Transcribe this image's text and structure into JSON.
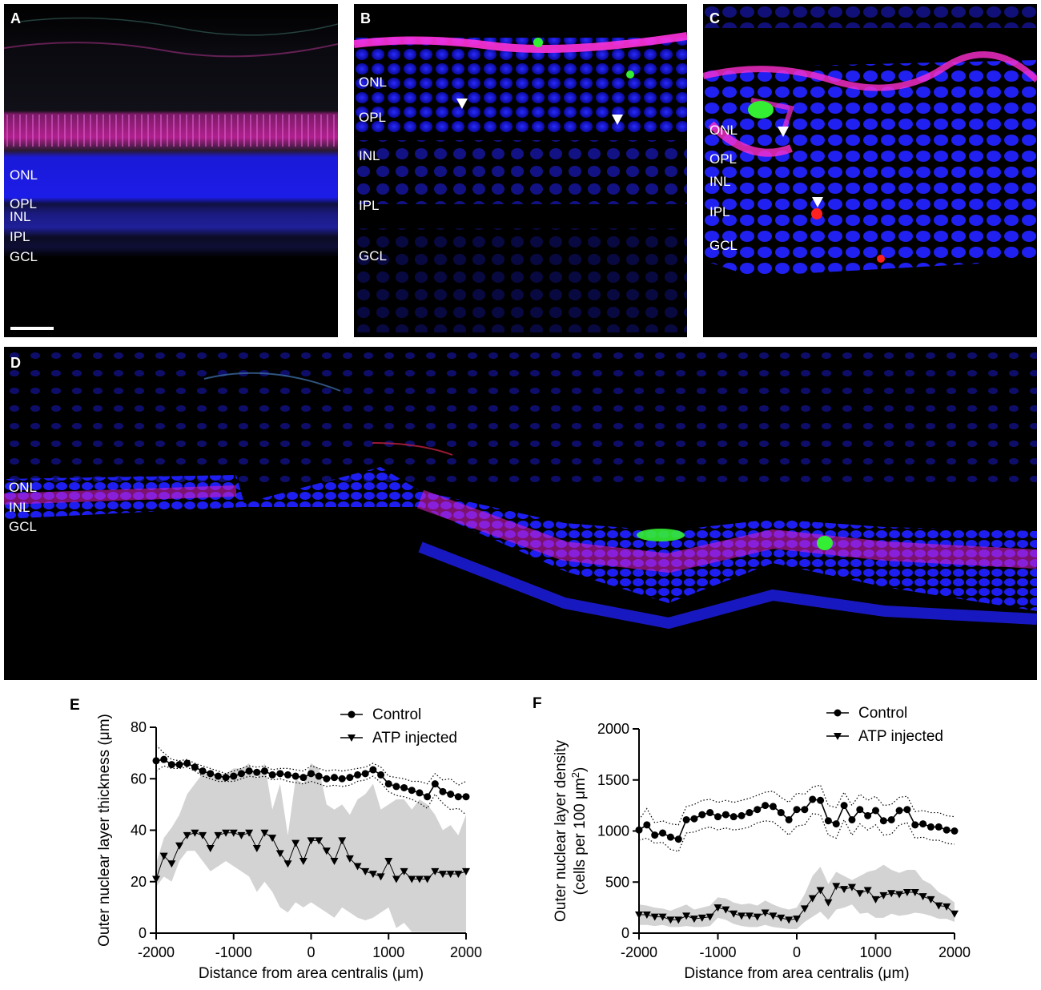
{
  "panels": {
    "A": {
      "label": "A",
      "layers": [
        "ONL",
        "OPL",
        "INL",
        "IPL",
        "GCL"
      ]
    },
    "B": {
      "label": "B",
      "layers": [
        "ONL",
        "OPL",
        "INL",
        "IPL",
        "GCL"
      ]
    },
    "C": {
      "label": "C",
      "layers": [
        "ONL",
        "OPL",
        "INL",
        "IPL",
        "GCL"
      ]
    },
    "D": {
      "label": "D",
      "layers": [
        "ONL",
        "INL",
        "GCL"
      ]
    }
  },
  "colors": {
    "nuclei": "#1a1aff",
    "magenta": "#e020c8",
    "green": "#30e030",
    "red": "#ff2020",
    "band": "#d3d3d3"
  },
  "chart_data": [
    {
      "panel": "E",
      "type": "line",
      "xlabel": "Distance from area centralis (μm)",
      "ylabel": "Outer nuclear layer thickness (μm)",
      "xlim": [
        -2000,
        2000
      ],
      "ylim": [
        0,
        80
      ],
      "xticks": [
        -2000,
        -1000,
        0,
        1000,
        2000
      ],
      "xticklabels": [
        "-2000",
        "-1000",
        "0",
        "1000",
        "2000"
      ],
      "yticks": [
        0,
        20,
        40,
        60,
        80
      ],
      "yticklabels": [
        "0",
        "20",
        "40",
        "60",
        "80"
      ],
      "legend": {
        "position": "top-right",
        "entries": [
          "Control",
          "ATP injected"
        ]
      },
      "x": [
        -2000,
        -1900,
        -1800,
        -1700,
        -1600,
        -1500,
        -1400,
        -1300,
        -1200,
        -1100,
        -1000,
        -900,
        -800,
        -700,
        -600,
        -500,
        -400,
        -300,
        -200,
        -100,
        0,
        100,
        200,
        300,
        400,
        500,
        600,
        700,
        800,
        900,
        1000,
        1100,
        1200,
        1300,
        1400,
        1500,
        1600,
        1700,
        1800,
        1900,
        2000
      ],
      "series": [
        {
          "name": "Control",
          "marker": "circle",
          "values": [
            67,
            67.5,
            65.5,
            65.5,
            66,
            64.5,
            63,
            62,
            61,
            60.5,
            61,
            62,
            63,
            62.5,
            63,
            61.5,
            62,
            61.5,
            61,
            60.5,
            62,
            61,
            60,
            60.5,
            60,
            60.5,
            61.5,
            62,
            63.5,
            61.5,
            58,
            57,
            56.5,
            55.5,
            54.5,
            53,
            58,
            55,
            54,
            53,
            53
          ],
          "upper": [
            73,
            70,
            67.5,
            67,
            67.5,
            66,
            65,
            64,
            63,
            62,
            63,
            64,
            65,
            64.5,
            65,
            63.5,
            64,
            64,
            63.5,
            63,
            65,
            64,
            63,
            63.5,
            63,
            63.5,
            64,
            64.5,
            66,
            64.5,
            61,
            60.5,
            60,
            59,
            59,
            58,
            62,
            59.5,
            60,
            57.5,
            59
          ],
          "lower": [
            63,
            65,
            64,
            64,
            64.5,
            63,
            61,
            60,
            59,
            59,
            59,
            60,
            61,
            60.5,
            61,
            59.5,
            60,
            59,
            58.5,
            58,
            59,
            58,
            57,
            57.5,
            57,
            57.5,
            59,
            59.5,
            61,
            58.5,
            55,
            53.5,
            53,
            52,
            50.5,
            48.5,
            54,
            50.5,
            48,
            48.5,
            46
          ]
        },
        {
          "name": "ATP injected",
          "marker": "triangle-down",
          "values": [
            21,
            30,
            27,
            34,
            38,
            39,
            38,
            33,
            38,
            39,
            39,
            38,
            39,
            33,
            39,
            37,
            31,
            27,
            35,
            28,
            36,
            36,
            32,
            28,
            36,
            29,
            26,
            24,
            23,
            22,
            28,
            21,
            24,
            21,
            21,
            21,
            24,
            23,
            23,
            23,
            24
          ],
          "upper": [
            27,
            37,
            41,
            46,
            54,
            58,
            62,
            62,
            62,
            62,
            64,
            64,
            66,
            60,
            66,
            48,
            58,
            38,
            60,
            58,
            66,
            64,
            50,
            48,
            50,
            46,
            52,
            54,
            58,
            48,
            50,
            52,
            52,
            48,
            52,
            50,
            46,
            40,
            42,
            38,
            46
          ],
          "lower": [
            18,
            22,
            20,
            28,
            32,
            32,
            28,
            24,
            26,
            28,
            26,
            24,
            22,
            16,
            20,
            16,
            10,
            8,
            12,
            10,
            12,
            10,
            8,
            6,
            10,
            8,
            6,
            5,
            6,
            8,
            10,
            2,
            4,
            0.5,
            0.5,
            0.5,
            0.5,
            0.5,
            0.5,
            0.5,
            0.5
          ]
        }
      ]
    },
    {
      "panel": "F",
      "type": "line",
      "xlabel": "Distance from area centralis (μm)",
      "ylabel": "Outer nuclear layer density",
      "ylabel2_prefix": "(cells per 100 μm",
      "ylabel2_sup": "2",
      "ylabel2_suffix": ")",
      "xlim": [
        -2000,
        2000
      ],
      "ylim": [
        0,
        2000
      ],
      "xticks": [
        -2000,
        -1000,
        0,
        1000,
        2000
      ],
      "xticklabels": [
        "-2000",
        "-1000",
        "0",
        "1000",
        "2000"
      ],
      "yticks": [
        0,
        500,
        1000,
        1500,
        2000
      ],
      "yticklabels": [
        "0",
        "500",
        "1000",
        "1500",
        "2000"
      ],
      "legend": {
        "position": "top-right",
        "entries": [
          "Control",
          "ATP injected"
        ]
      },
      "x": [
        -2000,
        -1900,
        -1800,
        -1700,
        -1600,
        -1500,
        -1400,
        -1300,
        -1200,
        -1100,
        -1000,
        -900,
        -800,
        -700,
        -600,
        -500,
        -400,
        -300,
        -200,
        -100,
        0,
        100,
        200,
        300,
        400,
        500,
        600,
        700,
        800,
        900,
        1000,
        1100,
        1200,
        1300,
        1400,
        1500,
        1600,
        1700,
        1800,
        1900,
        2000
      ],
      "series": [
        {
          "name": "Control",
          "marker": "circle",
          "values": [
            1010,
            1060,
            960,
            980,
            940,
            920,
            1110,
            1120,
            1160,
            1180,
            1140,
            1160,
            1140,
            1150,
            1180,
            1210,
            1250,
            1240,
            1180,
            1110,
            1210,
            1210,
            1310,
            1300,
            1100,
            1070,
            1250,
            1110,
            1210,
            1150,
            1200,
            1100,
            1110,
            1200,
            1210,
            1060,
            1070,
            1040,
            1040,
            1010,
            1000
          ],
          "upper": [
            1110,
            1220,
            1080,
            1100,
            1070,
            1060,
            1240,
            1260,
            1300,
            1310,
            1280,
            1300,
            1280,
            1300,
            1320,
            1350,
            1380,
            1390,
            1330,
            1280,
            1370,
            1360,
            1430,
            1450,
            1250,
            1230,
            1380,
            1250,
            1360,
            1300,
            1340,
            1250,
            1260,
            1330,
            1340,
            1190,
            1200,
            1180,
            1180,
            1150,
            1140
          ],
          "lower": [
            910,
            930,
            880,
            890,
            820,
            800,
            980,
            990,
            1020,
            1040,
            1010,
            1030,
            1010,
            1020,
            1040,
            1080,
            1100,
            1090,
            1030,
            960,
            1050,
            1060,
            1170,
            1160,
            960,
            930,
            1110,
            960,
            1070,
            1010,
            1060,
            960,
            970,
            1060,
            1080,
            930,
            940,
            910,
            910,
            880,
            870
          ]
        },
        {
          "name": "ATP injected",
          "marker": "triangle-down",
          "values": [
            180,
            180,
            160,
            160,
            130,
            130,
            170,
            140,
            150,
            160,
            250,
            230,
            190,
            170,
            170,
            160,
            200,
            170,
            150,
            130,
            140,
            240,
            340,
            420,
            300,
            460,
            430,
            450,
            390,
            420,
            330,
            370,
            390,
            380,
            400,
            400,
            360,
            330,
            270,
            260,
            190
          ],
          "upper": [
            280,
            270,
            250,
            240,
            220,
            250,
            280,
            230,
            250,
            270,
            350,
            340,
            300,
            280,
            290,
            270,
            320,
            280,
            250,
            230,
            250,
            380,
            560,
            650,
            480,
            600,
            560,
            520,
            560,
            600,
            620,
            670,
            620,
            590,
            620,
            620,
            520,
            480,
            400,
            360,
            300
          ],
          "lower": [
            80,
            80,
            70,
            80,
            60,
            60,
            70,
            60,
            60,
            70,
            150,
            130,
            90,
            70,
            60,
            60,
            80,
            60,
            50,
            40,
            40,
            110,
            160,
            210,
            130,
            230,
            250,
            280,
            190,
            200,
            150,
            150,
            190,
            170,
            180,
            200,
            190,
            170,
            140,
            140,
            110
          ]
        }
      ]
    }
  ]
}
